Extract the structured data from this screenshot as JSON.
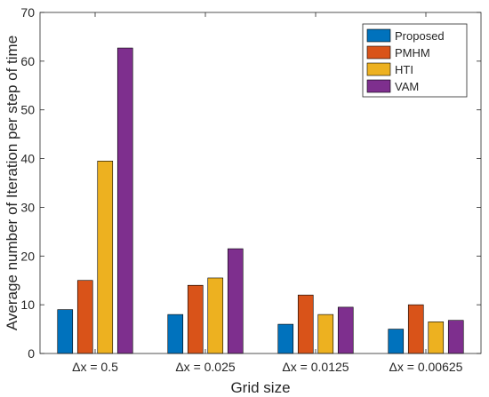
{
  "chart_data": {
    "type": "bar",
    "xlabel": "Grid size",
    "ylabel": "Average number of Iteration per step of time",
    "ylim": [
      0,
      70
    ],
    "yticks": [
      0,
      10,
      20,
      30,
      40,
      50,
      60,
      70
    ],
    "categories": [
      "Δx = 0.5",
      "Δx = 0.025",
      "Δx = 0.0125",
      "Δx = 0.00625"
    ],
    "series": [
      {
        "name": "Proposed",
        "color": "#0072BD",
        "values": [
          9,
          8,
          6,
          5
        ]
      },
      {
        "name": "PMHM",
        "color": "#D95319",
        "values": [
          15,
          14,
          12,
          10
        ]
      },
      {
        "name": "HTI",
        "color": "#EDB120",
        "values": [
          39.5,
          15.5,
          8,
          6.5
        ]
      },
      {
        "name": "VAM",
        "color": "#7E2F8E",
        "values": [
          62.7,
          21.5,
          9.5,
          6.8
        ]
      }
    ],
    "grid": false,
    "legend_position": "top-right"
  }
}
